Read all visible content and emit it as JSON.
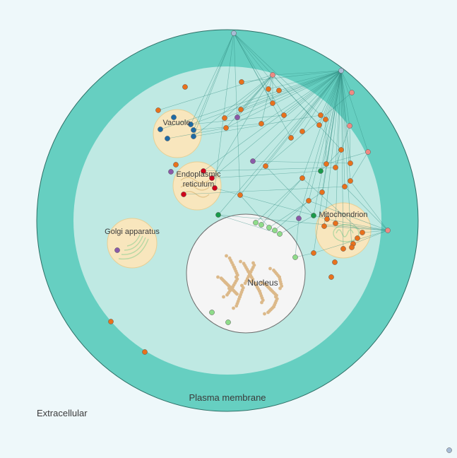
{
  "labels": {
    "extracellular": "Extracellular",
    "plasma_membrane": "Plasma membrane",
    "vacuole": "Vacuole",
    "er_line1": "Endoplasmic",
    "er_line2": "reticulum",
    "golgi": "Golgi apparatus",
    "mitochondrion": "Mitochondrion",
    "nucleus": "Nucleus"
  },
  "colors": {
    "background": "#eef8fa",
    "membrane": "#66cfc1",
    "cytoplasm": "#bfe9e3",
    "organelle": "#f8e6bd",
    "nucleus": "#f5f5f5",
    "edge": "#2f8a80",
    "orange": "#e8711c",
    "blue": "#1f6aa5",
    "red": "#d0021b",
    "purple": "#8a5aa8",
    "green": "#1a9a4a",
    "light_green": "#8fdc8a",
    "salmon": "#ee8a83",
    "grey_blue": "#a8bcd6"
  }
}
